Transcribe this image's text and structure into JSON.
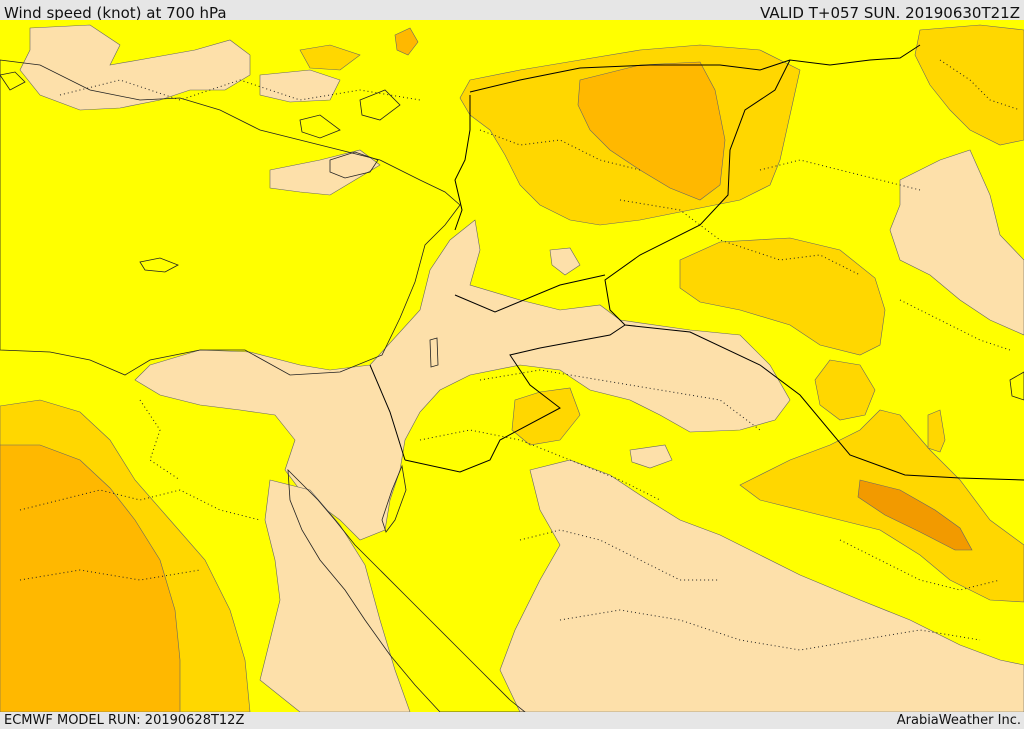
{
  "header": {
    "title": "Wind speed (knot) at 700 hPa",
    "valid": "VALID T+057 SUN. 20190630T21Z"
  },
  "footer": {
    "model_run": "ECMWF MODEL RUN: 20190628T12Z",
    "credit": "ArabiaWeather Inc."
  },
  "colors": {
    "sea": "#ffffff",
    "band_low": "#fde0aa",
    "band_mid": "#ffff00",
    "band_high": "#ffd700",
    "band_higher": "#ffb800",
    "band_highest": "#f29a00"
  }
}
